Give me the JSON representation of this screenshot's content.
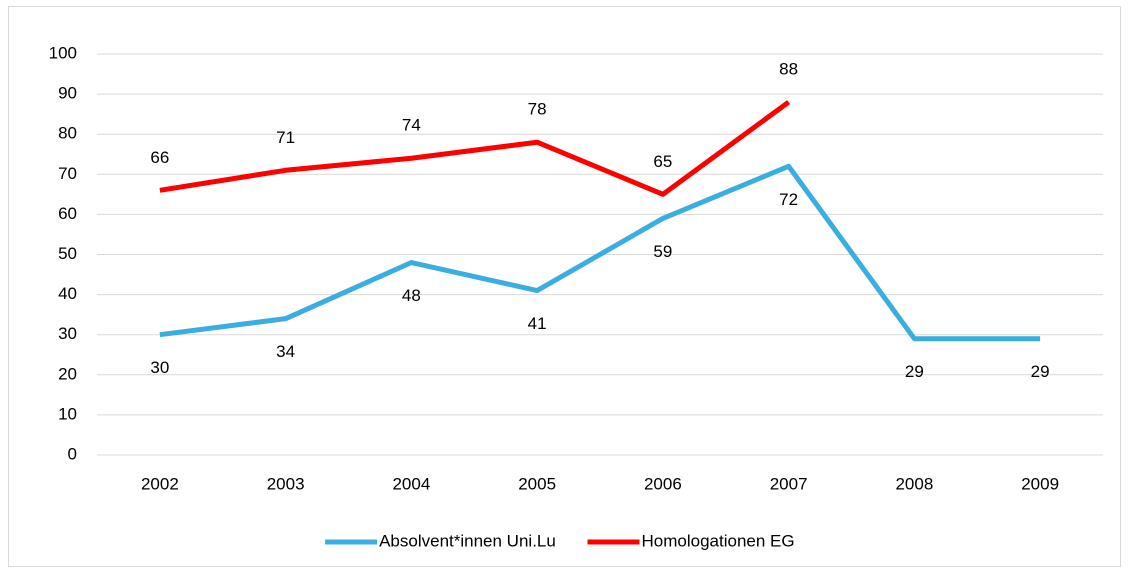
{
  "chart_data": {
    "type": "line",
    "categories": [
      "2002",
      "2003",
      "2004",
      "2005",
      "2006",
      "2007",
      "2008",
      "2009"
    ],
    "series": [
      {
        "name": "Absolvent*innen Uni.Lu",
        "color": "#3aaee0",
        "values": [
          30,
          34,
          48,
          41,
          59,
          72,
          29,
          29
        ]
      },
      {
        "name": "Homologationen EG",
        "color": "#ff0000",
        "values": [
          66,
          71,
          74,
          78,
          65,
          88,
          null,
          null
        ]
      }
    ],
    "ylim": [
      0,
      100
    ],
    "yticks": [
      0,
      10,
      20,
      30,
      40,
      50,
      60,
      70,
      80,
      90,
      100
    ],
    "grid": true,
    "legend": "bottom"
  }
}
